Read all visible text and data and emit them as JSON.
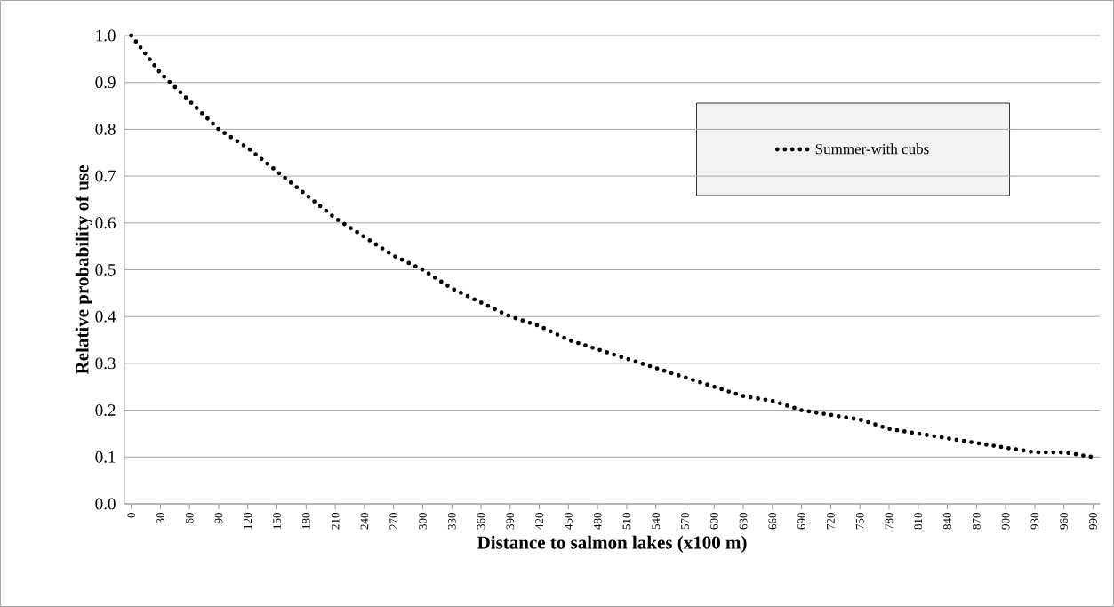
{
  "chart_data": {
    "type": "line",
    "xlabel": "Distance to salmon lakes (x100 m)",
    "ylabel": "Relative probability of use",
    "x": [
      0,
      30,
      60,
      90,
      120,
      150,
      180,
      210,
      240,
      270,
      300,
      330,
      360,
      390,
      420,
      450,
      480,
      510,
      540,
      570,
      600,
      630,
      660,
      690,
      720,
      750,
      780,
      810,
      840,
      870,
      900,
      930,
      960,
      990
    ],
    "series": [
      {
        "name": "Summer-with cubs",
        "color": "#000000",
        "line_style": "dotted",
        "values": [
          1.0,
          0.92,
          0.86,
          0.8,
          0.76,
          0.71,
          0.66,
          0.61,
          0.57,
          0.53,
          0.5,
          0.46,
          0.43,
          0.4,
          0.38,
          0.35,
          0.33,
          0.31,
          0.29,
          0.27,
          0.25,
          0.23,
          0.22,
          0.2,
          0.19,
          0.18,
          0.16,
          0.15,
          0.14,
          0.13,
          0.12,
          0.11,
          0.11,
          0.1
        ]
      }
    ],
    "xlim": [
      -7,
      997
    ],
    "xticks": [
      0,
      30,
      60,
      90,
      120,
      150,
      180,
      210,
      240,
      270,
      300,
      330,
      360,
      390,
      420,
      450,
      480,
      510,
      540,
      570,
      600,
      630,
      660,
      690,
      720,
      750,
      780,
      810,
      840,
      870,
      900,
      930,
      960,
      990
    ],
    "ylim": [
      0,
      1
    ],
    "yticks": [
      {
        "value": 0,
        "label": "0.0"
      },
      0.1,
      0.2,
      0.3,
      0.4,
      0.5,
      0.6,
      0.7,
      0.8,
      0.9,
      {
        "value": 1,
        "label": "1.0"
      }
    ],
    "grid": "y",
    "legend": "top right",
    "marker": "none"
  }
}
